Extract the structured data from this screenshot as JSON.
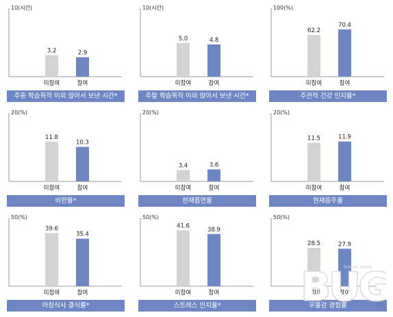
{
  "colors": {
    "non_participant": "#d3d3d3",
    "participant": "#6f86c4",
    "banner": "#6f86c4",
    "axis": "#999999"
  },
  "watermark": {
    "text": "BUG",
    "small_text": "Social news"
  },
  "chart_data": [
    {
      "type": "bar",
      "title": "주중 학습목적 이외 앉아서 보낸 시간*",
      "ymax_label": "10(시간)",
      "ylim": [
        0,
        10
      ],
      "categories": [
        "미참여",
        "참여"
      ],
      "values": [
        3.2,
        2.9
      ],
      "value_labels": [
        "3.2",
        "2.9"
      ]
    },
    {
      "type": "bar",
      "title": "주말 학습목적 이외 앉아서 보낸 시간*",
      "ymax_label": "10(시간)",
      "ylim": [
        0,
        10
      ],
      "categories": [
        "미참여",
        "참여"
      ],
      "values": [
        5.0,
        4.8
      ],
      "value_labels": [
        "5.0",
        "4.8"
      ]
    },
    {
      "type": "bar",
      "title": "주관적 건강 인지율*",
      "ymax_label": "100(%)",
      "ylim": [
        0,
        100
      ],
      "categories": [
        "미참여",
        "참여"
      ],
      "values": [
        62.2,
        70.4
      ],
      "value_labels": [
        "62.2",
        "70.4"
      ]
    },
    {
      "type": "bar",
      "title": "비만율*",
      "ymax_label": "20(%)",
      "ylim": [
        0,
        20
      ],
      "categories": [
        "미참여",
        "참여"
      ],
      "values": [
        11.8,
        10.3
      ],
      "value_labels": [
        "11.8",
        "10.3"
      ]
    },
    {
      "type": "bar",
      "title": "현재흡연율",
      "ymax_label": "20(%)",
      "ylim": [
        0,
        20
      ],
      "categories": [
        "미참여",
        "참여"
      ],
      "values": [
        3.4,
        3.6
      ],
      "value_labels": [
        "3.4",
        "3.6"
      ]
    },
    {
      "type": "bar",
      "title": "현재음주율",
      "ymax_label": "20(%)",
      "ylim": [
        0,
        20
      ],
      "categories": [
        "미참여",
        "참여"
      ],
      "values": [
        11.5,
        11.9
      ],
      "value_labels": [
        "11.5",
        "11.9"
      ]
    },
    {
      "type": "bar",
      "title": "아침식사 결식률*",
      "ymax_label": "50(%)",
      "ylim": [
        0,
        50
      ],
      "categories": [
        "미참여",
        "참여"
      ],
      "values": [
        39.6,
        35.4
      ],
      "value_labels": [
        "39.6",
        "35.4"
      ]
    },
    {
      "type": "bar",
      "title": "스트레스 인지율*",
      "ymax_label": "50(%)",
      "ylim": [
        0,
        50
      ],
      "categories": [
        "미참여",
        "참여"
      ],
      "values": [
        41.6,
        38.9
      ],
      "value_labels": [
        "41.6",
        "38.9"
      ]
    },
    {
      "type": "bar",
      "title": "우울감 경험률",
      "ymax_label": "50(%)",
      "ylim": [
        0,
        50
      ],
      "categories": [
        "미참여",
        "참여"
      ],
      "values": [
        28.5,
        27.9
      ],
      "value_labels": [
        "28.5",
        "27.9"
      ]
    }
  ]
}
